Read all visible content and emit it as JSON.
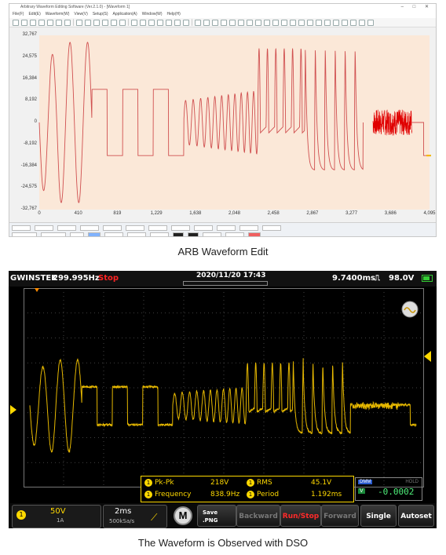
{
  "arb": {
    "title": "Arbitrary Waveform Editing Software (Ver.2.1.0) - [Waveform 1]",
    "menu": [
      "File(F)",
      "Edit(E)",
      "Waveform(W)",
      "View(V)",
      "Setup(S)",
      "Application(A)",
      "Window(W)",
      "Help(H)"
    ],
    "yticks": [
      "32,767",
      "24,575",
      "16,384",
      "8,192",
      "0",
      "-8,192",
      "-16,384",
      "-24,575",
      "-32,767"
    ],
    "xticks": [
      "0",
      "410",
      "819",
      "1,229",
      "1,638",
      "2,048",
      "2,458",
      "2,867",
      "3,277",
      "3,686",
      "4,095"
    ],
    "colors": {
      "plot_bg": "#fbe8d8",
      "trace": "#d05050",
      "noise": "#e00000"
    }
  },
  "caption_top": "ARB Waveform Edit",
  "dso": {
    "brand": "GWINSTEK",
    "frequency": "299.995Hz",
    "run_state": "Stop",
    "timestamp": "2020/11/20  17:43",
    "timebase_readout": "9.7400ms",
    "trigger_level": "98.0V",
    "measurements": [
      {
        "channel": "1",
        "name": "Pk-Pk",
        "value": "218V"
      },
      {
        "channel": "1",
        "name": "RMS",
        "value": "45.1V"
      },
      {
        "channel": "1",
        "name": "Frequency",
        "value": "838.9Hz"
      },
      {
        "channel": "1",
        "name": "Period",
        "value": "1.192ms"
      }
    ],
    "datalog": {
      "label": "DMM",
      "hold": "HOLD",
      "unit": "V",
      "value": "-0.0002"
    },
    "channel": {
      "volts": "50V",
      "probe": "1A"
    },
    "timebase": {
      "div": "2ms",
      "rate": "500kSa/s"
    },
    "buttons": {
      "m": "M",
      "save_line1": "Save",
      "save_line2": ".PNG",
      "backward": "Backward",
      "runstop": "Run/Stop",
      "forward": "Forward",
      "single": "Single",
      "autoset": "Autoset"
    },
    "colors": {
      "trace": "#e6b800",
      "grid": "#555555"
    }
  },
  "caption_bottom": "The Waveform is Observed with DSO"
}
